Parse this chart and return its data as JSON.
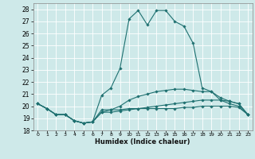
{
  "title": "",
  "xlabel": "Humidex (Indice chaleur)",
  "background_color": "#cee9e9",
  "grid_color": "#ffffff",
  "line_color": "#1e7070",
  "xlim": [
    -0.5,
    23.5
  ],
  "ylim": [
    18,
    28.5
  ],
  "yticks": [
    18,
    19,
    20,
    21,
    22,
    23,
    24,
    25,
    26,
    27,
    28
  ],
  "xticks": [
    0,
    1,
    2,
    3,
    4,
    5,
    6,
    7,
    8,
    9,
    10,
    11,
    12,
    13,
    14,
    15,
    16,
    17,
    18,
    19,
    20,
    21,
    22,
    23
  ],
  "figsize": [
    3.2,
    2.0
  ],
  "dpi": 100,
  "series": [
    {
      "x": [
        0,
        1,
        2,
        3,
        4,
        5,
        6,
        7,
        8,
        9,
        10,
        11,
        12,
        13,
        14,
        15,
        16,
        17,
        18,
        19,
        20,
        21,
        22,
        23
      ],
      "y": [
        20.2,
        19.8,
        19.3,
        19.3,
        18.8,
        18.6,
        18.7,
        20.9,
        21.5,
        23.1,
        27.2,
        27.9,
        26.7,
        27.9,
        27.9,
        27.0,
        26.6,
        25.2,
        21.5,
        21.2,
        20.5,
        20.2,
        20.0,
        19.3
      ]
    },
    {
      "x": [
        0,
        1,
        2,
        3,
        4,
        5,
        6,
        7,
        8,
        9,
        10,
        11,
        12,
        13,
        14,
        15,
        16,
        17,
        18,
        19,
        20,
        21,
        22,
        23
      ],
      "y": [
        20.2,
        19.8,
        19.3,
        19.3,
        18.8,
        18.6,
        18.7,
        19.5,
        19.7,
        20.0,
        20.5,
        20.8,
        21.0,
        21.2,
        21.3,
        21.4,
        21.4,
        21.3,
        21.2,
        21.2,
        20.7,
        20.4,
        20.2,
        19.3
      ]
    },
    {
      "x": [
        0,
        1,
        2,
        3,
        4,
        5,
        6,
        7,
        8,
        9,
        10,
        11,
        12,
        13,
        14,
        15,
        16,
        17,
        18,
        19,
        20,
        21,
        22,
        23
      ],
      "y": [
        20.2,
        19.8,
        19.3,
        19.3,
        18.8,
        18.6,
        18.7,
        19.5,
        19.5,
        19.6,
        19.7,
        19.8,
        19.9,
        20.0,
        20.1,
        20.2,
        20.3,
        20.4,
        20.5,
        20.5,
        20.5,
        20.4,
        20.2,
        19.3
      ]
    },
    {
      "x": [
        0,
        1,
        2,
        3,
        4,
        5,
        6,
        7,
        8,
        9,
        10,
        11,
        12,
        13,
        14,
        15,
        16,
        17,
        18,
        19,
        20,
        21,
        22,
        23
      ],
      "y": [
        20.2,
        19.8,
        19.3,
        19.3,
        18.8,
        18.6,
        18.7,
        19.7,
        19.7,
        19.7,
        19.8,
        19.8,
        19.8,
        19.8,
        19.8,
        19.8,
        19.9,
        19.9,
        20.0,
        20.0,
        20.0,
        20.0,
        19.9,
        19.3
      ]
    }
  ]
}
